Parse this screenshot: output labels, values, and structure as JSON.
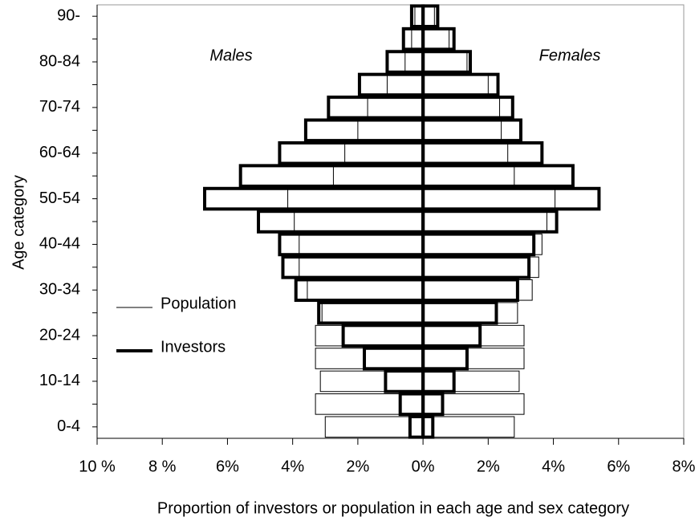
{
  "chart_data": {
    "type": "pyramid",
    "ylabel": "Age category",
    "xlabel": "Proportion of investors or population in each age and sex category",
    "annotations": [
      "Males",
      "Females"
    ],
    "categories": [
      "0-4",
      null,
      "10-14",
      null,
      "20-24",
      null,
      "30-34",
      null,
      "40-44",
      null,
      "50-54",
      null,
      "60-64",
      null,
      "70-74",
      null,
      "80-84",
      null,
      "90-"
    ],
    "series": [
      {
        "name": "Population",
        "color": "#000000",
        "line_width": 1,
        "males": [
          -3.0,
          -3.3,
          -3.15,
          -3.3,
          -3.3,
          -3.1,
          -3.55,
          -3.8,
          -3.8,
          -3.95,
          -4.15,
          -2.75,
          -2.4,
          -2.0,
          -1.7,
          -1.1,
          -0.55,
          -0.35,
          -0.25
        ],
        "females": [
          2.8,
          3.1,
          2.95,
          3.1,
          3.1,
          2.9,
          3.35,
          3.55,
          3.65,
          3.8,
          4.05,
          2.8,
          2.6,
          2.4,
          2.35,
          2.0,
          1.35,
          0.8,
          0.35
        ]
      },
      {
        "name": "Investors",
        "color": "#000000",
        "line_width": 4,
        "males": [
          -0.4,
          -0.7,
          -1.15,
          -1.8,
          -2.45,
          -3.2,
          -3.9,
          -4.3,
          -4.4,
          -5.05,
          -6.7,
          -5.6,
          -4.4,
          -3.6,
          -2.9,
          -1.95,
          -1.1,
          -0.6,
          -0.35
        ],
        "females": [
          0.3,
          0.6,
          0.95,
          1.35,
          1.75,
          2.25,
          2.9,
          3.25,
          3.4,
          4.1,
          5.4,
          4.6,
          3.65,
          3.0,
          2.75,
          2.3,
          1.45,
          0.95,
          0.45
        ]
      }
    ],
    "xlim": [
      -10,
      8
    ],
    "xticks": [
      {
        "value": -10,
        "label": "10 %"
      },
      {
        "value": -8,
        "label": "8 %"
      },
      {
        "value": -6,
        "label": "6%"
      },
      {
        "value": -4,
        "label": "4%"
      },
      {
        "value": -2,
        "label": "2%"
      },
      {
        "value": 0,
        "label": "0%"
      },
      {
        "value": 2,
        "label": "2%"
      },
      {
        "value": 4,
        "label": "4%"
      },
      {
        "value": 6,
        "label": "6%"
      },
      {
        "value": 8,
        "label": "8%"
      }
    ],
    "legend": "left"
  }
}
